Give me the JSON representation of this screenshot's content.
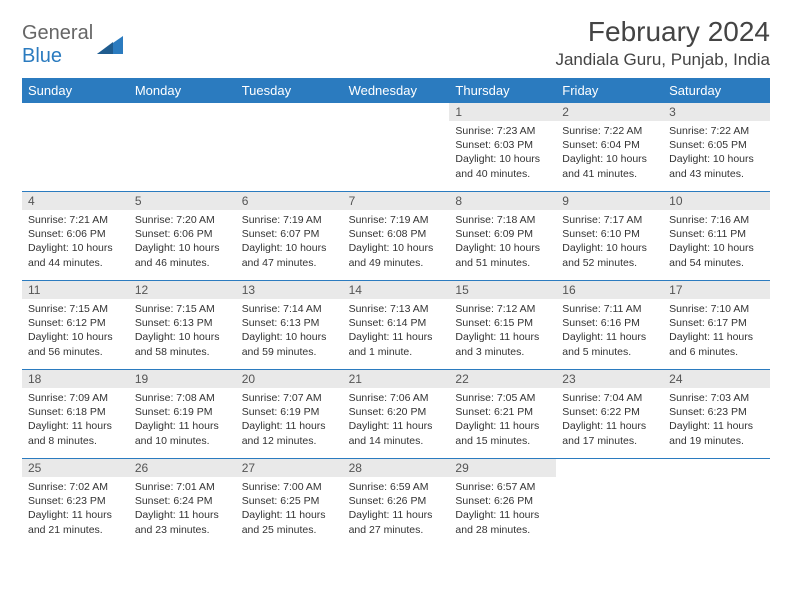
{
  "logo": {
    "part1": "General",
    "part2": "Blue"
  },
  "title": "February 2024",
  "location": "Jandiala Guru, Punjab, India",
  "colors": {
    "header_bg": "#2b7bbf",
    "header_text": "#ffffff",
    "daynum_bg": "#e9e9e9",
    "text": "#333333",
    "logo_gray": "#666666",
    "logo_blue": "#2b7bbf",
    "page_bg": "#ffffff"
  },
  "daynames": [
    "Sunday",
    "Monday",
    "Tuesday",
    "Wednesday",
    "Thursday",
    "Friday",
    "Saturday"
  ],
  "weeks": [
    [
      null,
      null,
      null,
      null,
      {
        "d": "1",
        "sr": "7:23 AM",
        "ss": "6:03 PM",
        "dl": "10 hours and 40 minutes."
      },
      {
        "d": "2",
        "sr": "7:22 AM",
        "ss": "6:04 PM",
        "dl": "10 hours and 41 minutes."
      },
      {
        "d": "3",
        "sr": "7:22 AM",
        "ss": "6:05 PM",
        "dl": "10 hours and 43 minutes."
      }
    ],
    [
      {
        "d": "4",
        "sr": "7:21 AM",
        "ss": "6:06 PM",
        "dl": "10 hours and 44 minutes."
      },
      {
        "d": "5",
        "sr": "7:20 AM",
        "ss": "6:06 PM",
        "dl": "10 hours and 46 minutes."
      },
      {
        "d": "6",
        "sr": "7:19 AM",
        "ss": "6:07 PM",
        "dl": "10 hours and 47 minutes."
      },
      {
        "d": "7",
        "sr": "7:19 AM",
        "ss": "6:08 PM",
        "dl": "10 hours and 49 minutes."
      },
      {
        "d": "8",
        "sr": "7:18 AM",
        "ss": "6:09 PM",
        "dl": "10 hours and 51 minutes."
      },
      {
        "d": "9",
        "sr": "7:17 AM",
        "ss": "6:10 PM",
        "dl": "10 hours and 52 minutes."
      },
      {
        "d": "10",
        "sr": "7:16 AM",
        "ss": "6:11 PM",
        "dl": "10 hours and 54 minutes."
      }
    ],
    [
      {
        "d": "11",
        "sr": "7:15 AM",
        "ss": "6:12 PM",
        "dl": "10 hours and 56 minutes."
      },
      {
        "d": "12",
        "sr": "7:15 AM",
        "ss": "6:13 PM",
        "dl": "10 hours and 58 minutes."
      },
      {
        "d": "13",
        "sr": "7:14 AM",
        "ss": "6:13 PM",
        "dl": "10 hours and 59 minutes."
      },
      {
        "d": "14",
        "sr": "7:13 AM",
        "ss": "6:14 PM",
        "dl": "11 hours and 1 minute."
      },
      {
        "d": "15",
        "sr": "7:12 AM",
        "ss": "6:15 PM",
        "dl": "11 hours and 3 minutes."
      },
      {
        "d": "16",
        "sr": "7:11 AM",
        "ss": "6:16 PM",
        "dl": "11 hours and 5 minutes."
      },
      {
        "d": "17",
        "sr": "7:10 AM",
        "ss": "6:17 PM",
        "dl": "11 hours and 6 minutes."
      }
    ],
    [
      {
        "d": "18",
        "sr": "7:09 AM",
        "ss": "6:18 PM",
        "dl": "11 hours and 8 minutes."
      },
      {
        "d": "19",
        "sr": "7:08 AM",
        "ss": "6:19 PM",
        "dl": "11 hours and 10 minutes."
      },
      {
        "d": "20",
        "sr": "7:07 AM",
        "ss": "6:19 PM",
        "dl": "11 hours and 12 minutes."
      },
      {
        "d": "21",
        "sr": "7:06 AM",
        "ss": "6:20 PM",
        "dl": "11 hours and 14 minutes."
      },
      {
        "d": "22",
        "sr": "7:05 AM",
        "ss": "6:21 PM",
        "dl": "11 hours and 15 minutes."
      },
      {
        "d": "23",
        "sr": "7:04 AM",
        "ss": "6:22 PM",
        "dl": "11 hours and 17 minutes."
      },
      {
        "d": "24",
        "sr": "7:03 AM",
        "ss": "6:23 PM",
        "dl": "11 hours and 19 minutes."
      }
    ],
    [
      {
        "d": "25",
        "sr": "7:02 AM",
        "ss": "6:23 PM",
        "dl": "11 hours and 21 minutes."
      },
      {
        "d": "26",
        "sr": "7:01 AM",
        "ss": "6:24 PM",
        "dl": "11 hours and 23 minutes."
      },
      {
        "d": "27",
        "sr": "7:00 AM",
        "ss": "6:25 PM",
        "dl": "11 hours and 25 minutes."
      },
      {
        "d": "28",
        "sr": "6:59 AM",
        "ss": "6:26 PM",
        "dl": "11 hours and 27 minutes."
      },
      {
        "d": "29",
        "sr": "6:57 AM",
        "ss": "6:26 PM",
        "dl": "11 hours and 28 minutes."
      },
      null,
      null
    ]
  ],
  "labels": {
    "sunrise": "Sunrise: ",
    "sunset": "Sunset: ",
    "daylight": "Daylight: "
  }
}
